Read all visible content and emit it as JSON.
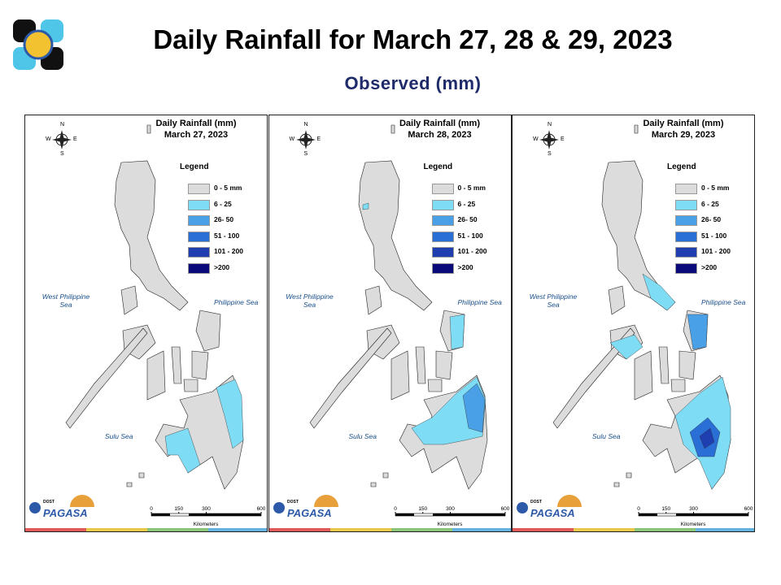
{
  "header": {
    "title": "Daily Rainfall for March 27, 28 & 29, 2023",
    "subtitle": "Observed (mm)"
  },
  "panels": [
    {
      "title": "Daily Rainfall (mm)",
      "date": "March 27, 2023"
    },
    {
      "title": "Daily Rainfall (mm)",
      "date": "March 28, 2023"
    },
    {
      "title": "Daily Rainfall (mm)",
      "date": "March 29, 2023"
    }
  ],
  "legend": {
    "title": "Legend",
    "items": [
      {
        "label": "0 - 5 mm",
        "color": "#dcdcdc"
      },
      {
        "label": "6 - 25",
        "color": "#7fdcf5"
      },
      {
        "label": "26- 50",
        "color": "#4aa0e6"
      },
      {
        "label": "51 - 100",
        "color": "#2a6fd6"
      },
      {
        "label": "101 - 200",
        "color": "#1f3fb0"
      },
      {
        "label": ">200",
        "color": "#0a0a7a"
      }
    ]
  },
  "compass": {
    "n": "N",
    "e": "E",
    "s": "S",
    "w": "W"
  },
  "seas": {
    "west": "West Philippine Sea",
    "east": "Philippine Sea",
    "south": "Sulu Sea"
  },
  "scale": {
    "ticks": [
      0,
      150,
      300,
      600
    ],
    "unit": "Kilometers"
  },
  "logo": {
    "agency": "DOST",
    "name": "PAGASA"
  }
}
